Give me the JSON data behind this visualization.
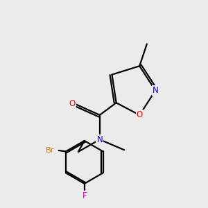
{
  "bg_color": "#ebebeb",
  "bond_color": "#000000",
  "atom_colors": {
    "N": "#0000ee",
    "O_carbonyl": "#ee0000",
    "O_ring": "#ee0000",
    "Br": "#cc7700",
    "F": "#cc00cc",
    "C": "#000000"
  },
  "figsize": [
    3.0,
    3.0
  ],
  "dpi": 100
}
